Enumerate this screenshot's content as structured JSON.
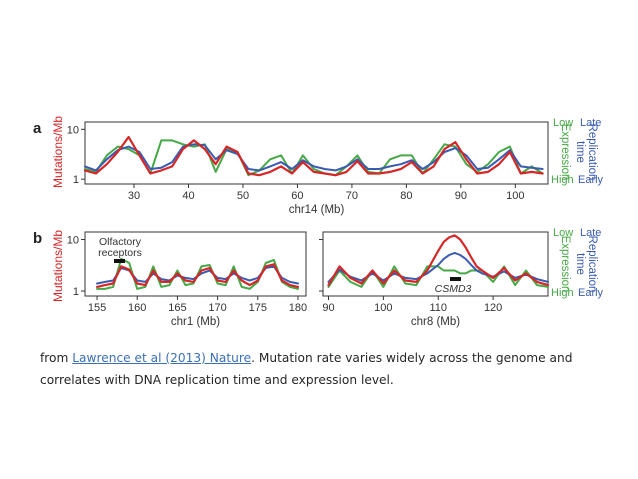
{
  "colors": {
    "red": "#d62728",
    "blue": "#3a5bb0",
    "green": "#46a846",
    "axis": "#333333"
  },
  "figure": {
    "ylabel": "Mutations/Mb",
    "yticks": [
      1,
      10
    ],
    "right_labels": {
      "expression_low": "Low",
      "expression_title": "Expression",
      "expression_high": "High",
      "replication_late": "Late",
      "replication_title": "Replication",
      "replication_title2": "time",
      "replication_early": "Early"
    },
    "annotations": {
      "olfactory_line1": "Olfactory",
      "olfactory_line2": "receptors",
      "csmd3": "CSMD3"
    }
  },
  "chart_data": [
    {
      "panel": "a",
      "type": "line",
      "xlabel": "chr14 (Mb)",
      "xlim": [
        21,
        106
      ],
      "ylim": [
        0.8,
        14
      ],
      "yscale": "log",
      "xticks": [
        30,
        40,
        50,
        60,
        70,
        80,
        90,
        100
      ],
      "x": [
        21,
        23,
        25,
        27,
        29,
        31,
        33,
        35,
        37,
        39,
        41,
        43,
        45,
        47,
        49,
        51,
        53,
        55,
        57,
        59,
        61,
        63,
        65,
        67,
        69,
        71,
        73,
        75,
        77,
        79,
        81,
        83,
        85,
        87,
        89,
        91,
        93,
        95,
        97,
        99,
        101,
        103,
        105
      ],
      "series": [
        {
          "name": "Mutations/Mb",
          "color": "red",
          "values": [
            1.5,
            1.3,
            2,
            3.5,
            7,
            3,
            1.3,
            1.5,
            1.8,
            4,
            6,
            4,
            2,
            4.5,
            3.5,
            1.3,
            1.2,
            1.4,
            1.8,
            1.3,
            2.2,
            1.4,
            1.3,
            1.2,
            1.4,
            2.3,
            1.3,
            1.3,
            1.4,
            1.6,
            2.2,
            1.3,
            1.8,
            4,
            5.5,
            2.5,
            1.3,
            1.4,
            2,
            3.5,
            1.3,
            1.4,
            1.3
          ]
        },
        {
          "name": "Replication time",
          "color": "blue",
          "values": [
            1.8,
            1.5,
            2.5,
            3.8,
            4.5,
            3.5,
            1.6,
            1.7,
            2.2,
            4.5,
            5,
            4.8,
            2.5,
            3.8,
            3.2,
            1.6,
            1.5,
            1.8,
            2.2,
            1.6,
            2.4,
            1.8,
            1.6,
            1.5,
            1.8,
            2.5,
            1.6,
            1.6,
            1.8,
            2,
            2.4,
            1.6,
            2.2,
            3.5,
            4.2,
            3,
            1.6,
            1.7,
            2.5,
            3.8,
            1.8,
            1.7,
            1.6
          ]
        },
        {
          "name": "Expression",
          "color": "green",
          "values": [
            1.6,
            1.4,
            3,
            4.5,
            4,
            3,
            1.3,
            6,
            6,
            5,
            4.5,
            5,
            1.4,
            4,
            3.5,
            1.2,
            1.5,
            2.5,
            3,
            1.3,
            3,
            1.6,
            1.3,
            1.2,
            1.8,
            3,
            1.4,
            1.3,
            2.5,
            3,
            3,
            1.3,
            2.5,
            5,
            4.5,
            2,
            1.4,
            2,
            3.5,
            4.5,
            1.3,
            1.8,
            1.3
          ]
        }
      ]
    },
    {
      "panel": "b1",
      "type": "line",
      "xlabel": "chr1 (Mb)",
      "xlim": [
        153.5,
        181
      ],
      "ylim": [
        0.8,
        14
      ],
      "yscale": "log",
      "xticks": [
        155,
        160,
        165,
        170,
        175,
        180
      ],
      "x": [
        155,
        156,
        157,
        158,
        159,
        160,
        161,
        162,
        163,
        164,
        165,
        166,
        167,
        168,
        169,
        170,
        171,
        172,
        173,
        174,
        175,
        176,
        177,
        178,
        179,
        180
      ],
      "series": [
        {
          "name": "Mutations/Mb",
          "color": "red",
          "values": [
            1.2,
            1.3,
            1.4,
            3,
            2.6,
            1.4,
            1.3,
            2.5,
            1.5,
            1.5,
            2.2,
            1.6,
            1.5,
            2.5,
            2.8,
            1.6,
            1.5,
            2.5,
            1.6,
            1.3,
            1.6,
            3,
            3.3,
            1.6,
            1.3,
            1.2
          ]
        },
        {
          "name": "Replication time",
          "color": "blue",
          "values": [
            1.4,
            1.5,
            1.6,
            2.8,
            2.5,
            1.6,
            1.5,
            2.2,
            1.7,
            1.6,
            2,
            1.8,
            1.7,
            2.2,
            2.5,
            1.8,
            1.7,
            2.2,
            1.8,
            1.6,
            1.8,
            2.8,
            3,
            1.8,
            1.5,
            1.4
          ]
        },
        {
          "name": "Expression",
          "color": "green",
          "values": [
            1.1,
            1.1,
            1.2,
            4.2,
            3.5,
            1.1,
            1.2,
            3,
            1.2,
            1.3,
            2.5,
            1.3,
            1.4,
            3,
            3.2,
            1.4,
            1.3,
            3,
            1.2,
            1.1,
            1.5,
            3.5,
            4,
            1.5,
            1.2,
            1.1
          ]
        }
      ]
    },
    {
      "panel": "b2",
      "type": "line",
      "xlabel": "chr8 (Mb)",
      "xlim": [
        89,
        130
      ],
      "ylim": [
        0.8,
        14
      ],
      "yscale": "log",
      "xticks": [
        90,
        100,
        110,
        120
      ],
      "x": [
        90,
        92,
        94,
        96,
        98,
        100,
        102,
        104,
        106,
        108,
        110,
        111,
        112,
        113,
        114,
        115,
        116,
        117,
        118,
        120,
        122,
        124,
        126,
        128,
        130
      ],
      "series": [
        {
          "name": "Mutations/Mb",
          "color": "red",
          "values": [
            1.3,
            3,
            1.8,
            1.4,
            2.5,
            1.4,
            2.5,
            1.6,
            1.5,
            2.5,
            6,
            9,
            11,
            12,
            10,
            7,
            4.5,
            3,
            2.5,
            1.8,
            2.8,
            1.6,
            2.2,
            1.5,
            1.3
          ]
        },
        {
          "name": "Replication time",
          "color": "blue",
          "values": [
            1.5,
            2.6,
            1.9,
            1.6,
            2.2,
            1.6,
            2.2,
            1.8,
            1.7,
            2.2,
            3.2,
            4.2,
            5,
            5.5,
            5,
            4.2,
            3.2,
            2.5,
            2.2,
            1.9,
            2.4,
            1.8,
            2.1,
            1.7,
            1.5
          ]
        },
        {
          "name": "Expression",
          "color": "green",
          "values": [
            1.2,
            2.5,
            1.5,
            1.2,
            2.5,
            1.2,
            3,
            1.4,
            1.3,
            3,
            3,
            2.5,
            2.5,
            2.5,
            2.2,
            2.2,
            2.5,
            2.5,
            2.5,
            1.5,
            3,
            1.3,
            2.5,
            1.3,
            1.2
          ]
        }
      ]
    }
  ],
  "caption": {
    "prefix": "from ",
    "link": "Lawrence et al (2013) Nature",
    "rest": ". Mutation rate varies widely across the genome and correlates with DNA replication time and expression level."
  }
}
